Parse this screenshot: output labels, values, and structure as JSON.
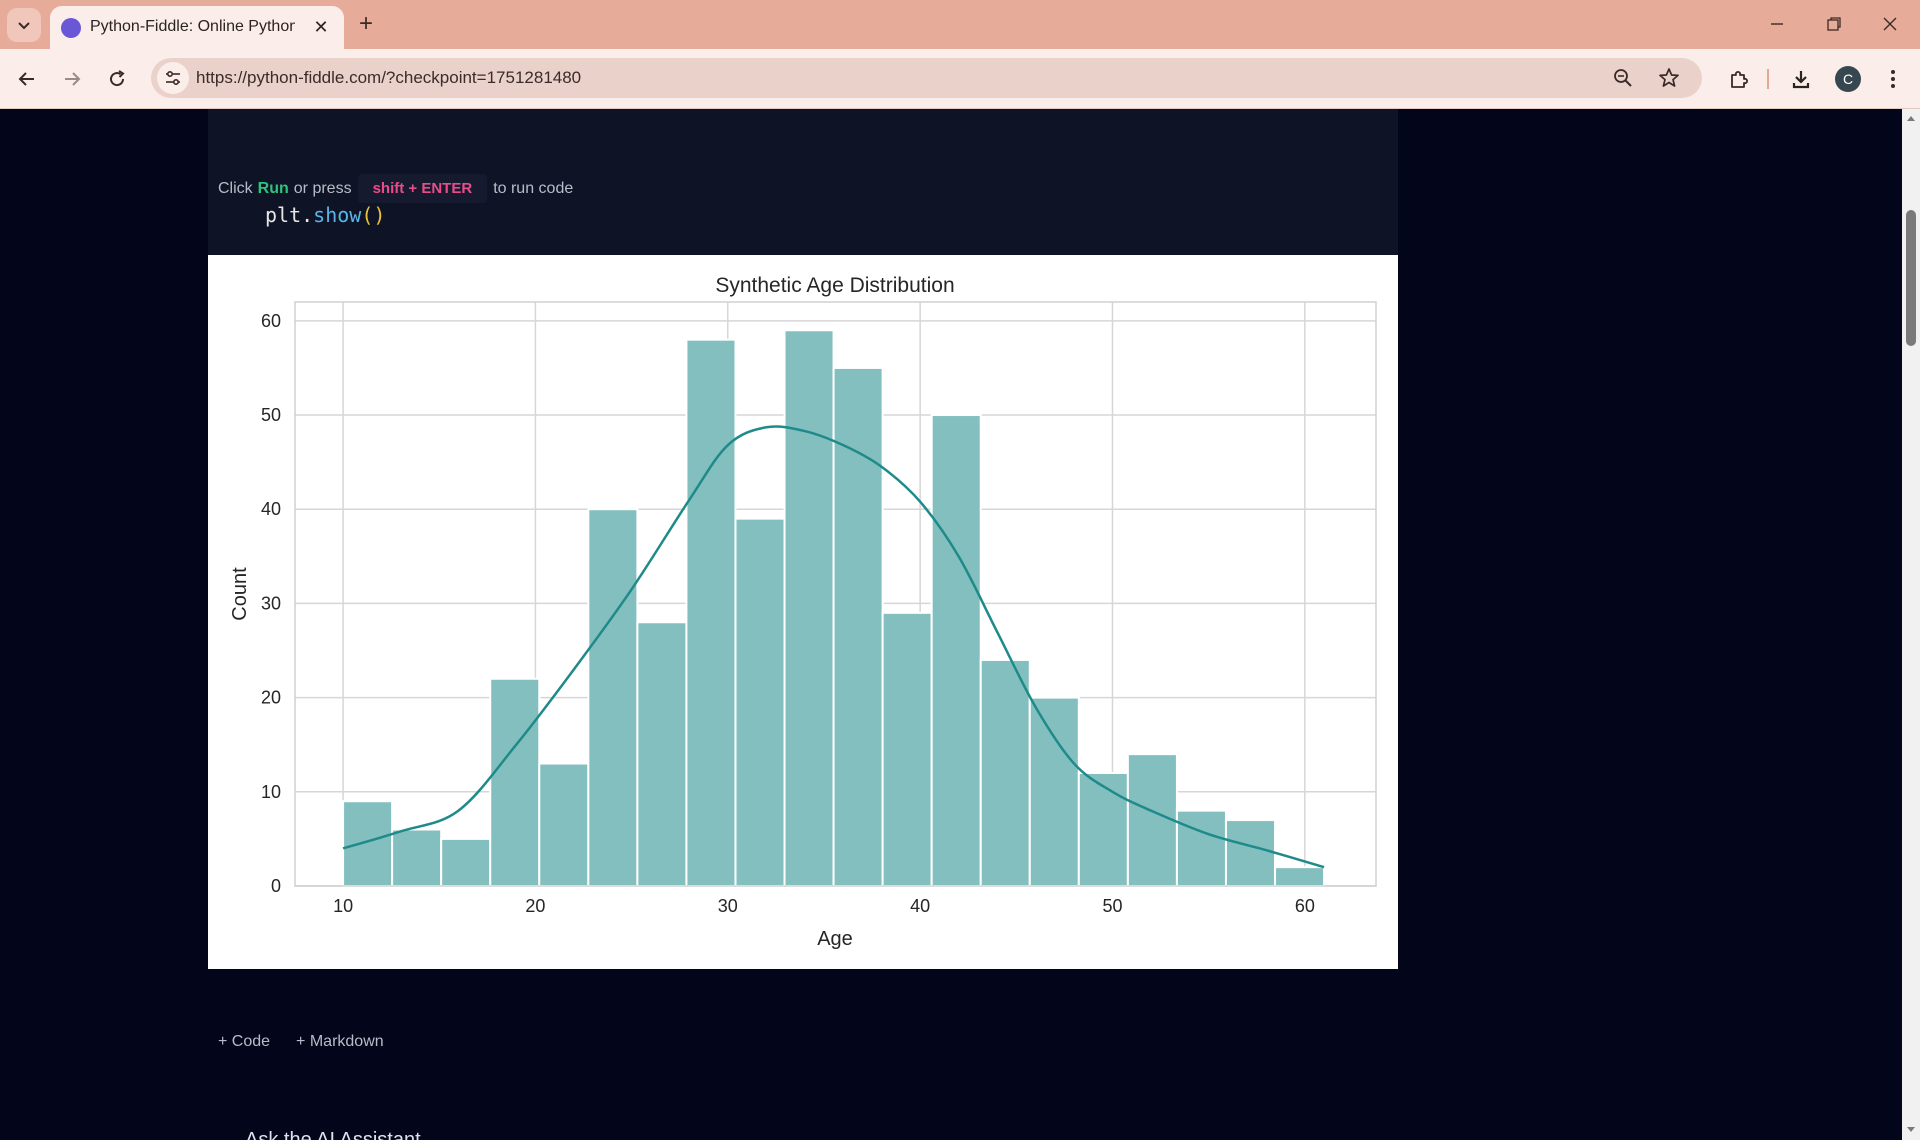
{
  "browser": {
    "tab_title": "Python-Fiddle: Online Python IDE",
    "url": "https://python-fiddle.com/?checkpoint=1751281480",
    "profile_initial": "C"
  },
  "editor": {
    "code_prefix": "plt.",
    "code_fn": "show",
    "code_parens": "()"
  },
  "run_hint": {
    "before": "Click",
    "run_word": "Run",
    "middle": "or press",
    "shortcut": "shift + ENTER",
    "after": "to run code"
  },
  "chart_data": {
    "type": "bar",
    "title": "Synthetic Age Distribution",
    "xlabel": "Age",
    "ylabel": "Count",
    "xlim": [
      7.5,
      63.7
    ],
    "ylim": [
      0,
      62
    ],
    "xticks": [
      10,
      20,
      30,
      40,
      50,
      60
    ],
    "yticks": [
      0,
      10,
      20,
      30,
      40,
      50,
      60
    ],
    "grid": true,
    "bin_edges": [
      10.0,
      12.55,
      15.1,
      17.65,
      20.2,
      22.75,
      25.3,
      27.85,
      30.4,
      32.95,
      35.5,
      38.05,
      40.6,
      43.15,
      45.7,
      48.25,
      50.8,
      53.35,
      55.9,
      58.45,
      61.0
    ],
    "counts": [
      9,
      6,
      5,
      22,
      13,
      40,
      28,
      58,
      39,
      59,
      55,
      29,
      50,
      24,
      20,
      12,
      14,
      8,
      7,
      2
    ],
    "kde": {
      "x": [
        10,
        13,
        16,
        19,
        22,
        25,
        28,
        30,
        32,
        34,
        36,
        38,
        40,
        42,
        44,
        46,
        48,
        50,
        52,
        55,
        58,
        61
      ],
      "y": [
        4,
        5.8,
        8,
        15,
        23,
        31.5,
        41,
        46.8,
        48.7,
        48.3,
        46.8,
        44.5,
        40.8,
        35,
        27,
        19,
        13,
        10,
        8,
        5.5,
        3.8,
        2
      ]
    },
    "colors": {
      "bar": "#84bfbf",
      "bar_edge": "#ffffff",
      "kde_line": "#1f8a8a",
      "grid": "#d6d6d6",
      "text": "#262626"
    }
  },
  "cell_actions": {
    "add_code": "+ Code",
    "add_markdown": "+ Markdown"
  },
  "assistant_peek": "Ask the AI Assistant"
}
